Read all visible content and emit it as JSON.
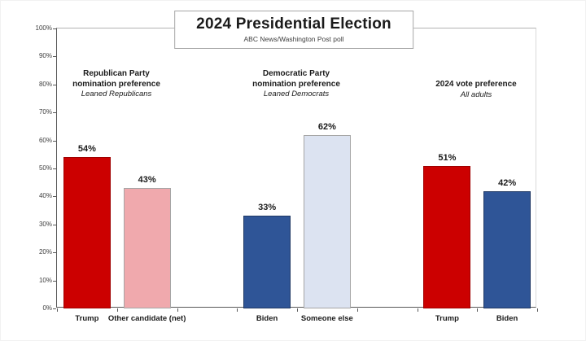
{
  "title_box": {
    "title": "2024 Presidential Election",
    "subtitle": "ABC News/Washington Post poll"
  },
  "sections": [
    {
      "title": "Republican Party\nnomination preference",
      "subtitle": "Leaned Republicans"
    },
    {
      "title": "Democratic Party\nnomination preference",
      "subtitle": "Leaned Democrats"
    },
    {
      "title": "2024 vote preference",
      "subtitle": "All adults"
    }
  ],
  "colors": {
    "red": {
      "fill": "#CC0000",
      "border": "#A00000"
    },
    "pink": {
      "fill": "#F0A9AD",
      "border": "#A6A6A6"
    },
    "dark_blue": {
      "fill": "#2F5597",
      "border": "#1F3864"
    },
    "light_blue": {
      "fill": "#DCE3F1",
      "border": "#A6A6A6"
    }
  },
  "chart_data": {
    "type": "bar",
    "title": "2024 Presidential Election",
    "subtitle": "ABC News/Washington Post poll",
    "xlabel": "",
    "ylabel": "",
    "ylim": [
      0,
      100
    ],
    "y_ticks": [
      0,
      10,
      20,
      30,
      40,
      50,
      60,
      70,
      80,
      90,
      100
    ],
    "y_tick_format": "percent",
    "grid": false,
    "legend": "none",
    "groups": [
      {
        "header": "Republican Party nomination preference",
        "subheader": "Leaned Republicans",
        "bars": [
          {
            "label": "Trump",
            "value": 54,
            "value_label": "54%",
            "color": "red"
          },
          {
            "label": "Other candidate (net)",
            "value": 43,
            "value_label": "43%",
            "color": "pink"
          }
        ]
      },
      {
        "header": "Democratic Party nomination preference",
        "subheader": "Leaned Democrats",
        "bars": [
          {
            "label": "Biden",
            "value": 33,
            "value_label": "33%",
            "color": "dark_blue"
          },
          {
            "label": "Someone else",
            "value": 62,
            "value_label": "62%",
            "color": "light_blue"
          }
        ]
      },
      {
        "header": "2024 vote preference",
        "subheader": "All adults",
        "bars": [
          {
            "label": "Trump",
            "value": 51,
            "value_label": "51%",
            "color": "red"
          },
          {
            "label": "Biden",
            "value": 42,
            "value_label": "42%",
            "color": "dark_blue"
          }
        ]
      }
    ]
  }
}
